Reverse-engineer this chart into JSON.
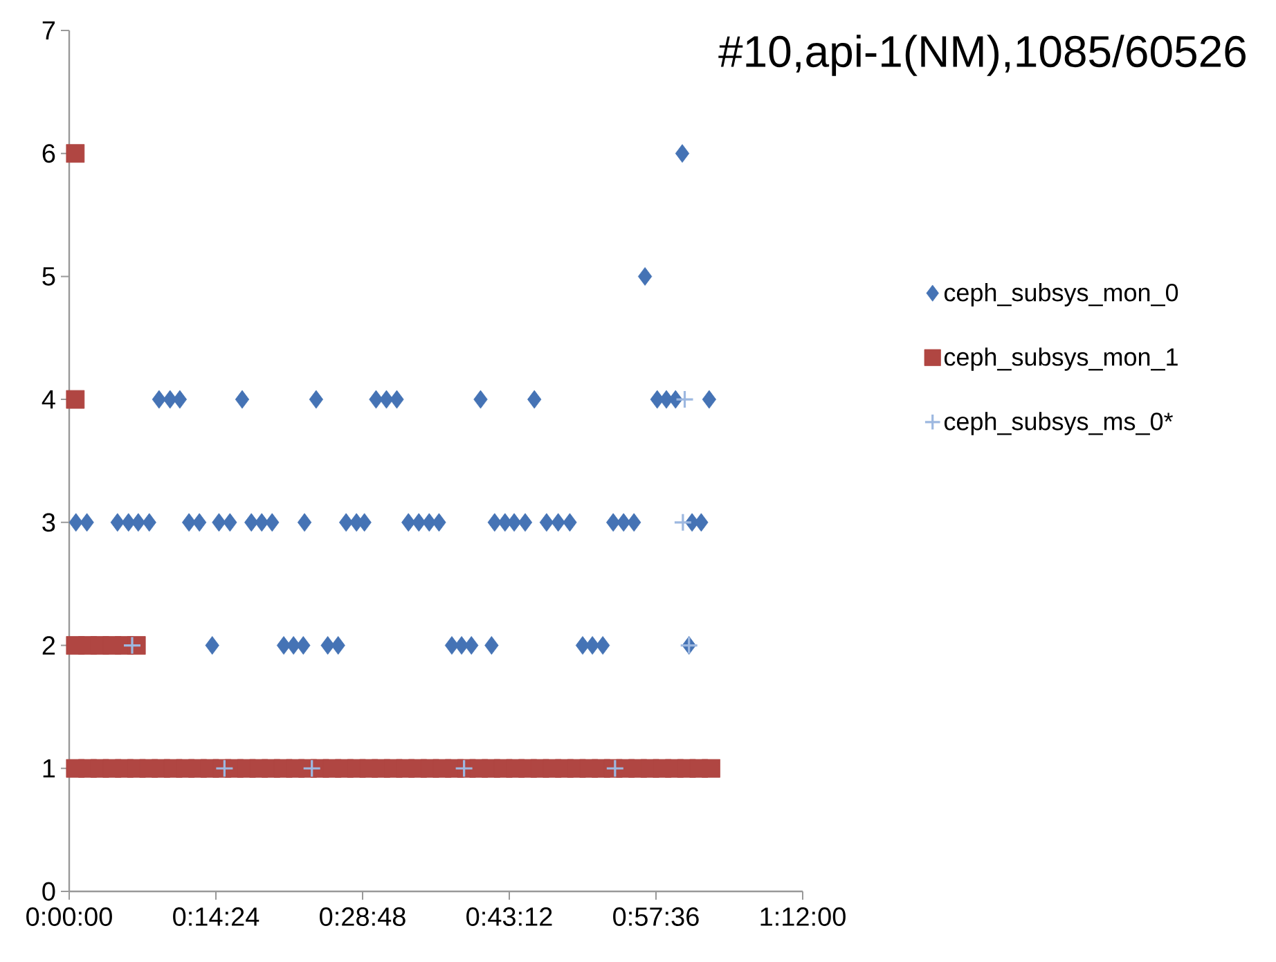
{
  "chart_data": {
    "type": "scatter",
    "title": "#10,api-1(NM),1085/60526",
    "xlim": [
      0,
      1.2
    ],
    "xticks": [
      {
        "value": 0,
        "label": "0:00:00"
      },
      {
        "value": 0.24,
        "label": "0:14:24"
      },
      {
        "value": 0.48,
        "label": "0:28:48"
      },
      {
        "value": 0.72,
        "label": "0:43:12"
      },
      {
        "value": 0.96,
        "label": "0:57:36"
      },
      {
        "value": 1.2,
        "label": "1:12:00"
      }
    ],
    "ylim": [
      0,
      7
    ],
    "yticks": [
      0,
      1,
      2,
      3,
      4,
      5,
      6,
      7
    ],
    "grid": false,
    "legend": "right",
    "series": [
      {
        "name": "ceph_subsys_mon_0",
        "color": "#4573b5",
        "marker": "diamond",
        "x": [
          0.147,
          0.165,
          0.181,
          0.283,
          0.404,
          0.502,
          0.519,
          0.536,
          0.673,
          0.761,
          0.962,
          0.977,
          0.992,
          1.047,
          0.011,
          0.029,
          0.079,
          0.097,
          0.113,
          0.131,
          0.196,
          0.213,
          0.245,
          0.263,
          0.298,
          0.315,
          0.332,
          0.385,
          0.453,
          0.47,
          0.483,
          0.555,
          0.572,
          0.589,
          0.605,
          0.696,
          0.713,
          0.728,
          0.746,
          0.781,
          0.8,
          0.819,
          0.89,
          0.907,
          0.924,
          1.019,
          1.034,
          0.234,
          0.351,
          0.367,
          0.383,
          0.423,
          0.44,
          0.626,
          0.642,
          0.658,
          0.691,
          0.84,
          0.856,
          0.873,
          1.014,
          0.942,
          1.003
        ],
        "values": [
          4,
          4,
          4,
          4,
          4,
          4,
          4,
          4,
          4,
          4,
          4,
          4,
          4,
          4,
          3,
          3,
          3,
          3,
          3,
          3,
          3,
          3,
          3,
          3,
          3,
          3,
          3,
          3,
          3,
          3,
          3,
          3,
          3,
          3,
          3,
          3,
          3,
          3,
          3,
          3,
          3,
          3,
          3,
          3,
          3,
          3,
          3,
          2,
          2,
          2,
          2,
          2,
          2,
          2,
          2,
          2,
          2,
          2,
          2,
          2,
          2,
          5,
          6
        ]
      },
      {
        "name": "ceph_subsys_mon_1",
        "color": "#b04642",
        "marker": "square",
        "x": [
          0.01,
          0.01,
          0.01,
          0.03,
          0.05,
          0.07,
          0.09,
          0.11,
          0.01,
          0.03,
          0.05,
          0.07,
          0.09,
          0.11,
          0.13,
          0.15,
          0.17,
          0.19,
          0.21,
          0.23,
          0.25,
          0.27,
          0.29,
          0.31,
          0.33,
          0.35,
          0.37,
          0.39,
          0.41,
          0.43,
          0.45,
          0.47,
          0.49,
          0.51,
          0.53,
          0.55,
          0.57,
          0.59,
          0.61,
          0.63,
          0.65,
          0.67,
          0.69,
          0.71,
          0.73,
          0.75,
          0.77,
          0.79,
          0.81,
          0.83,
          0.85,
          0.87,
          0.89,
          0.91,
          0.93,
          0.95,
          0.97,
          0.99,
          1.01,
          1.03,
          1.05
        ],
        "values": [
          6,
          4,
          2,
          2,
          2,
          2,
          2,
          2,
          1,
          1,
          1,
          1,
          1,
          1,
          1,
          1,
          1,
          1,
          1,
          1,
          1,
          1,
          1,
          1,
          1,
          1,
          1,
          1,
          1,
          1,
          1,
          1,
          1,
          1,
          1,
          1,
          1,
          1,
          1,
          1,
          1,
          1,
          1,
          1,
          1,
          1,
          1,
          1,
          1,
          1,
          1,
          1,
          1,
          1,
          1,
          1,
          1,
          1,
          1,
          1,
          1
        ]
      },
      {
        "name": "ceph_subsys_ms_0*",
        "color": "#9db8e0",
        "marker": "cross",
        "x": [
          0.254,
          0.397,
          0.646,
          0.893,
          0.103,
          1.014,
          1.004,
          1.007
        ],
        "values": [
          1,
          1,
          1,
          1,
          2,
          2,
          3,
          4
        ]
      }
    ]
  }
}
